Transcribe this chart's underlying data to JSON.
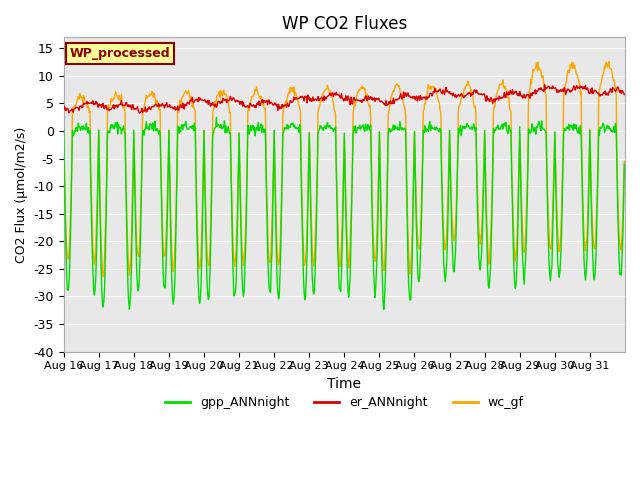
{
  "title": "WP CO2 Fluxes",
  "xlabel": "Time",
  "ylabel": "CO2 Flux (μmol/m2/s)",
  "ylim": [
    -40,
    17
  ],
  "yticks": [
    -40,
    -35,
    -30,
    -25,
    -20,
    -15,
    -10,
    -5,
    0,
    5,
    10,
    15
  ],
  "x_labels": [
    "Aug 16",
    "Aug 17",
    "Aug 18",
    "Aug 19",
    "Aug 20",
    "Aug 21",
    "Aug 22",
    "Aug 23",
    "Aug 24",
    "Aug 25",
    "Aug 26",
    "Aug 27",
    "Aug 28",
    "Aug 29",
    "Aug 30",
    "Aug 31"
  ],
  "gpp_color": "#00DD00",
  "er_color": "#DD0000",
  "wc_color": "#FFA500",
  "legend_label": "WP_processed",
  "legend_text_color": "#8B0000",
  "legend_bg_color": "#FFFF99",
  "legend_edge_color": "#8B0000",
  "line_labels": [
    "gpp_ANNnight",
    "er_ANNnight",
    "wc_gf"
  ],
  "bg_color": "#E8E8E8",
  "fig_bg_color": "#FFFFFF",
  "linewidth_data": 1.0,
  "linewidth_legend": 2.0,
  "n_points_per_day": 48,
  "num_days": 16
}
